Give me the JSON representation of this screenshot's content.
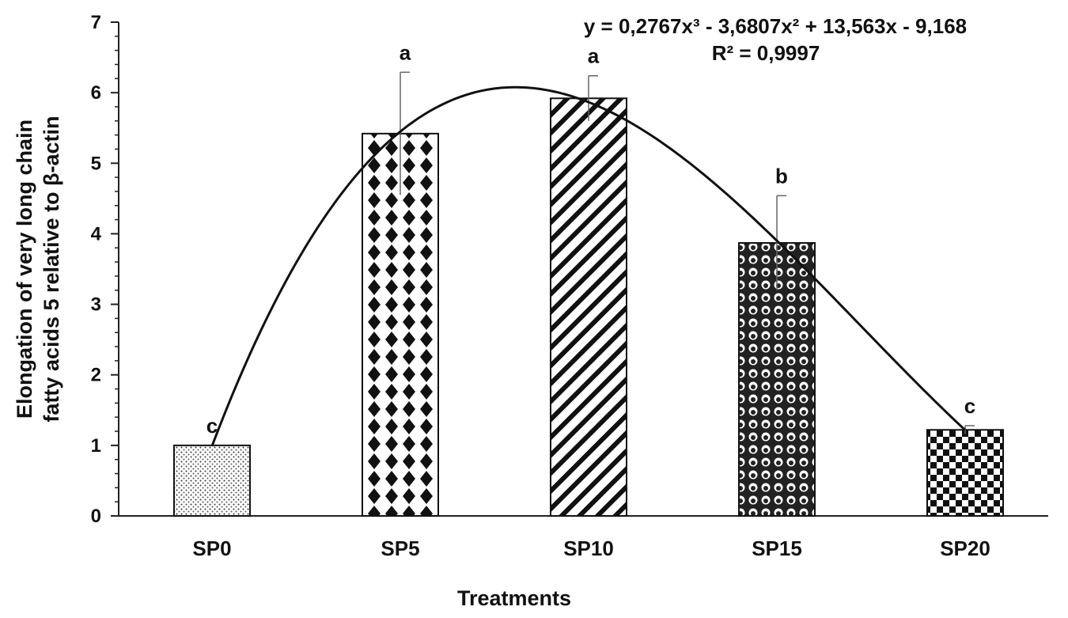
{
  "chart_data": {
    "type": "bar",
    "xlabel": "Treatments",
    "ylabel_lines": [
      "Elongation of very long chain",
      "fatty acids 5 relative to β-actin"
    ],
    "ylim": [
      0,
      7
    ],
    "yticks": [
      "0",
      "1",
      "2",
      "3",
      "4",
      "5",
      "6",
      "7"
    ],
    "grid": false,
    "categories": [
      "SP0",
      "SP5",
      "SP10",
      "SP15",
      "SP20"
    ],
    "values": [
      1.0,
      5.42,
      5.92,
      3.87,
      1.22
    ],
    "errors": [
      0.0,
      0.87,
      0.32,
      0.67,
      0.06
    ],
    "significance": [
      "c",
      "a",
      "a",
      "b",
      "c"
    ],
    "patterns": [
      "dots",
      "diamonds",
      "diagonal-stripes",
      "circles",
      "checker"
    ],
    "trendline": {
      "type": "polynomial",
      "coefficients": [
        0.2767,
        -3.6807,
        13.563,
        -9.168
      ],
      "equation": "y = 0,2767x³ - 3,6807x² + 13,563x - 9,168",
      "r_squared": "R² = 0,9997"
    }
  }
}
